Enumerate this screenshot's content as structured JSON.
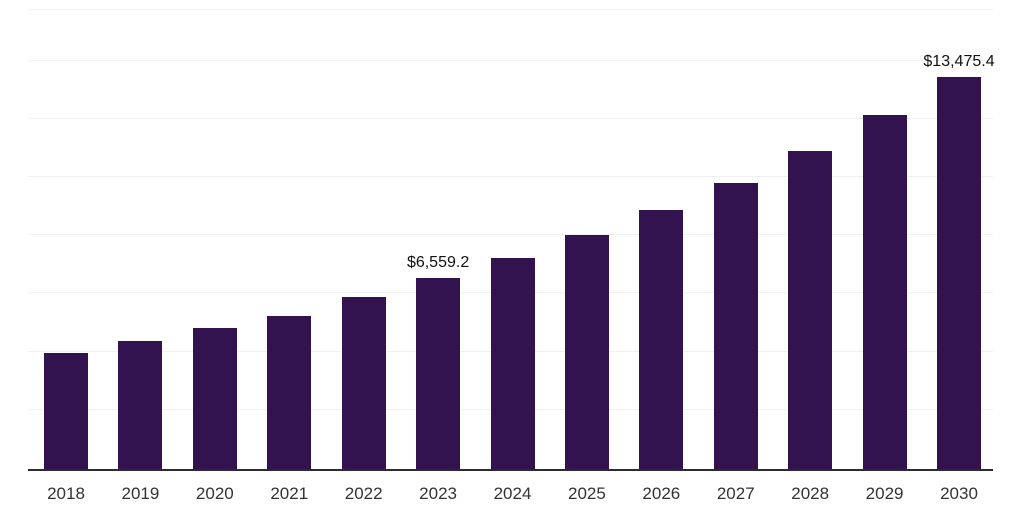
{
  "chart_data": {
    "type": "bar",
    "title": "",
    "xlabel": "",
    "ylabel": "",
    "categories": [
      "2018",
      "2019",
      "2020",
      "2021",
      "2022",
      "2023",
      "2024",
      "2025",
      "2026",
      "2027",
      "2028",
      "2029",
      "2030"
    ],
    "values": [
      3990,
      4400,
      4850,
      5260,
      5910,
      6559.2,
      7250,
      8040,
      8900,
      9830,
      10930,
      12170,
      13475.4
    ],
    "value_labels": [
      {
        "category": "2023",
        "text": "$6,559.2"
      },
      {
        "category": "2030",
        "text": "$13,475.4"
      }
    ],
    "unit_prefix": "$",
    "ylim": [
      0,
      16000
    ],
    "gridline_step": 2000,
    "gridline_max": 14000,
    "legend": "none",
    "colors": {
      "bar": "#32134F",
      "axis_line": "#2B2B31",
      "gridline": "#F0F0F3",
      "value_label_text": "#111111",
      "tick_label_text": "#333333",
      "background": "#FFFFFF"
    }
  }
}
